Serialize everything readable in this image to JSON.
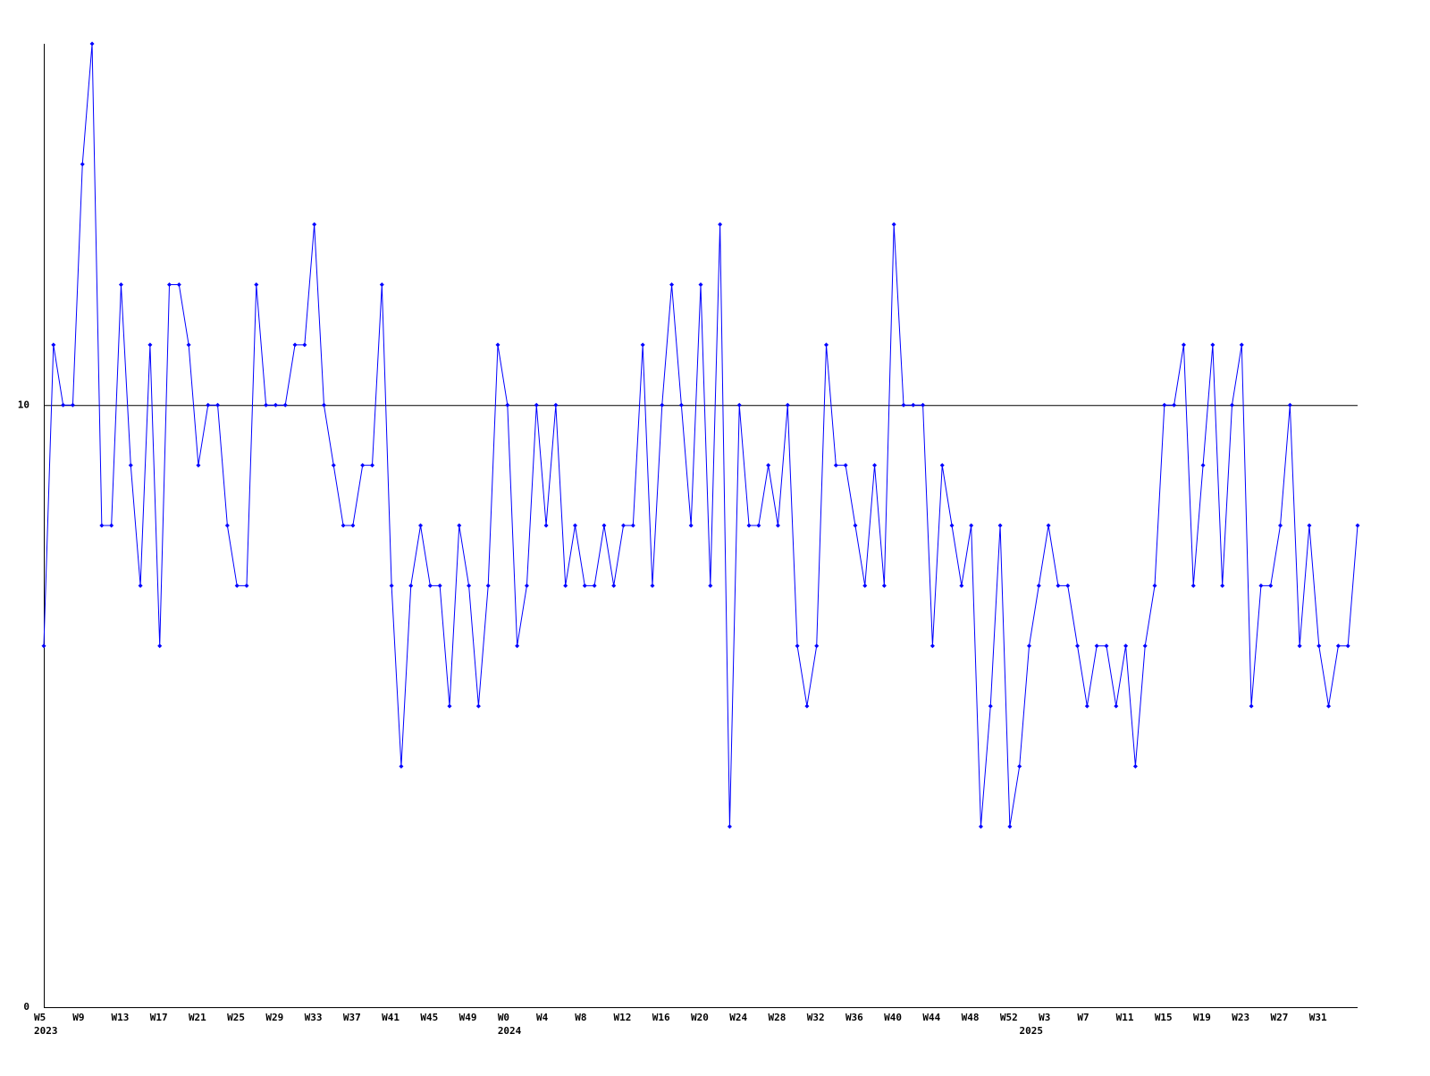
{
  "chart_data": {
    "type": "line",
    "color": "#0000ff",
    "categories": [
      "W5",
      null,
      null,
      null,
      "W9",
      null,
      null,
      null,
      "W13",
      null,
      null,
      null,
      "W17",
      null,
      null,
      null,
      "W21",
      null,
      null,
      null,
      "W25",
      null,
      null,
      null,
      "W29",
      null,
      null,
      null,
      "W33",
      null,
      null,
      null,
      "W37",
      null,
      null,
      null,
      "W41",
      null,
      null,
      null,
      "W45",
      null,
      null,
      null,
      "W49",
      null,
      null,
      null,
      "W0",
      null,
      null,
      null,
      "W4",
      null,
      null,
      null,
      "W8",
      null,
      null,
      null,
      "W12",
      null,
      null,
      null,
      "W16",
      null,
      null,
      null,
      "W20",
      null,
      null,
      null,
      "W24",
      null,
      null,
      null,
      "W28",
      null,
      null,
      null,
      "W32",
      null,
      null,
      null,
      "W36",
      null,
      null,
      null,
      "W40",
      null,
      null,
      null,
      "W44",
      null,
      null,
      null,
      "W48",
      null,
      null,
      null,
      "W52",
      null,
      null,
      null,
      "W3",
      null,
      null,
      null,
      "W7",
      null,
      null,
      null,
      "W11",
      null,
      null,
      null,
      "W15",
      null,
      null,
      null,
      "W19",
      null,
      null,
      null,
      "W23",
      null,
      null,
      null,
      "W27",
      null,
      null,
      null,
      "W31",
      null,
      null,
      null,
      null
    ],
    "year_labels": [
      "2023",
      null,
      null,
      null,
      null,
      null,
      null,
      null,
      null,
      null,
      null,
      null,
      null,
      null,
      null,
      null,
      null,
      null,
      null,
      null,
      null,
      null,
      null,
      null,
      null,
      null,
      null,
      null,
      null,
      null,
      null,
      null,
      null,
      null,
      null,
      null,
      null,
      null,
      null,
      null,
      null,
      null,
      null,
      null,
      null,
      null,
      null,
      null,
      "2024",
      null,
      null,
      null,
      null,
      null,
      null,
      null,
      null,
      null,
      null,
      null,
      null,
      null,
      null,
      null,
      null,
      null,
      null,
      null,
      null,
      null,
      null,
      null,
      null,
      null,
      null,
      null,
      null,
      null,
      null,
      null,
      null,
      null,
      null,
      null,
      null,
      null,
      null,
      null,
      null,
      null,
      null,
      null,
      null,
      null,
      null,
      null,
      null,
      null,
      null,
      null,
      null,
      null,
      "2025",
      null,
      null,
      null,
      null,
      null,
      null,
      null,
      null,
      null,
      null,
      null,
      null,
      null,
      null,
      null,
      null,
      null,
      null,
      null,
      null,
      null,
      null,
      null,
      null,
      null,
      null,
      null,
      null,
      null,
      null,
      null,
      null,
      null,
      null,
      null,
      null
    ],
    "values": [
      6,
      11,
      10,
      10,
      14,
      16,
      8,
      8,
      12,
      9,
      7,
      11,
      6,
      12,
      12,
      11,
      9,
      10,
      10,
      8,
      7,
      7,
      12,
      10,
      10,
      10,
      11,
      11,
      13,
      10,
      9,
      8,
      8,
      9,
      9,
      12,
      7,
      4,
      7,
      8,
      7,
      7,
      5,
      8,
      7,
      5,
      7,
      11,
      10,
      6,
      7,
      10,
      8,
      10,
      7,
      8,
      7,
      7,
      8,
      7,
      8,
      8,
      11,
      7,
      10,
      12,
      10,
      8,
      12,
      7,
      13,
      3,
      10,
      8,
      8,
      9,
      8,
      10,
      6,
      5,
      6,
      11,
      9,
      9,
      8,
      7,
      9,
      7,
      13,
      10,
      10,
      10,
      6,
      9,
      8,
      7,
      8,
      3,
      5,
      8,
      3,
      4,
      6,
      7,
      8,
      7,
      7,
      6,
      5,
      6,
      6,
      5,
      6,
      4,
      6,
      7,
      10,
      10,
      11,
      7,
      9,
      11,
      7,
      10,
      11,
      5,
      7,
      7,
      8,
      10,
      6,
      8,
      6,
      5,
      6,
      6,
      8
    ],
    "ylim": [
      0,
      16
    ],
    "yticks": [
      0,
      10
    ],
    "grid": true
  }
}
